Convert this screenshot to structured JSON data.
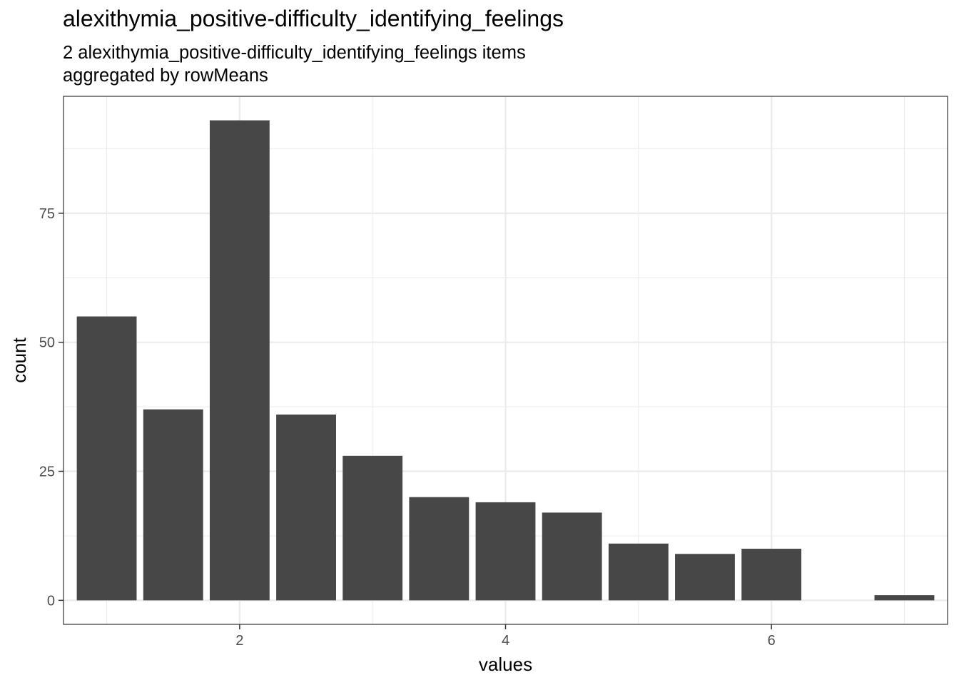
{
  "chart_data": {
    "type": "bar",
    "title": "alexithymia_positive-difficulty_identifying_feelings",
    "subtitle_lines": [
      "2 alexithymia_positive-difficulty_identifying_feelings items",
      "aggregated by rowMeans"
    ],
    "xlabel": "values",
    "ylabel": "count",
    "x": [
      1,
      1.5,
      2,
      2.5,
      3,
      3.5,
      4,
      4.5,
      5,
      5.5,
      6,
      7
    ],
    "values": [
      55,
      37,
      93,
      36,
      28,
      20,
      19,
      17,
      11,
      9,
      10,
      1
    ],
    "bin_width": 0.45,
    "xlim": [
      0.675,
      7.325
    ],
    "ylim": [
      -4.65,
      97.65
    ],
    "x_ticks": [
      2,
      4,
      6
    ],
    "x_tick_labels": [
      "2",
      "4",
      "6"
    ],
    "y_ticks": [
      0,
      25,
      50,
      75
    ],
    "y_tick_labels": [
      "0",
      "25",
      "50",
      "75"
    ],
    "grid": true,
    "bar_color": "#474747",
    "grid_major_color": "#ebebeb",
    "panel_border_color": "#333333"
  }
}
